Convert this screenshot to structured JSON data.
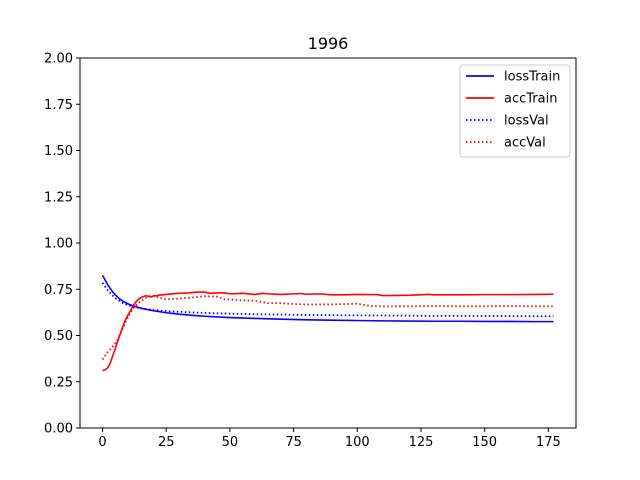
{
  "chart_data": {
    "type": "line",
    "title": "1996",
    "xlabel": "",
    "ylabel": "",
    "xlim": [
      -8.85,
      185.85
    ],
    "ylim": [
      0,
      2.0
    ],
    "xticks": [
      0,
      25,
      50,
      75,
      100,
      125,
      150,
      175
    ],
    "yticks": [
      0.0,
      0.25,
      0.5,
      0.75,
      1.0,
      1.25,
      1.5,
      1.75,
      2.0
    ],
    "xtick_labels": [
      "0",
      "25",
      "50",
      "75",
      "100",
      "125",
      "150",
      "175"
    ],
    "ytick_labels": [
      "0.00",
      "0.25",
      "0.50",
      "0.75",
      "1.00",
      "1.25",
      "1.50",
      "1.75",
      "2.00"
    ],
    "grid": false,
    "legend_position": "top-right",
    "series": [
      {
        "name": "lossTrain",
        "color": "#0000ff",
        "style": "solid",
        "x": [
          0,
          1,
          2,
          3,
          4,
          5,
          6,
          7,
          8,
          10,
          12,
          14,
          16,
          18,
          20,
          25,
          30,
          35,
          40,
          50,
          60,
          70,
          80,
          90,
          100,
          110,
          120,
          130,
          140,
          150,
          160,
          170,
          177
        ],
        "y": [
          0.825,
          0.8,
          0.775,
          0.755,
          0.735,
          0.72,
          0.707,
          0.695,
          0.685,
          0.671,
          0.66,
          0.652,
          0.645,
          0.639,
          0.634,
          0.623,
          0.615,
          0.609,
          0.604,
          0.597,
          0.592,
          0.588,
          0.585,
          0.583,
          0.581,
          0.579,
          0.578,
          0.577,
          0.577,
          0.576,
          0.576,
          0.575,
          0.575
        ]
      },
      {
        "name": "accTrain",
        "color": "#ff0000",
        "style": "solid",
        "x": [
          0,
          1,
          2,
          3,
          4,
          5,
          6,
          7,
          8,
          9,
          10,
          11,
          12,
          13,
          14,
          15,
          16,
          17,
          18,
          19,
          20,
          21,
          22,
          25,
          28,
          31,
          34,
          37,
          40,
          42,
          45,
          48,
          50,
          55,
          60,
          63,
          65,
          70,
          75,
          78,
          80,
          85,
          90,
          95,
          100,
          105,
          108,
          110,
          120,
          128,
          130,
          140,
          150,
          160,
          170,
          177
        ],
        "y": [
          0.31,
          0.315,
          0.325,
          0.35,
          0.39,
          0.43,
          0.47,
          0.51,
          0.55,
          0.585,
          0.61,
          0.635,
          0.66,
          0.68,
          0.695,
          0.705,
          0.71,
          0.715,
          0.712,
          0.708,
          0.713,
          0.715,
          0.718,
          0.722,
          0.726,
          0.729,
          0.73,
          0.735,
          0.735,
          0.728,
          0.73,
          0.73,
          0.725,
          0.728,
          0.722,
          0.728,
          0.725,
          0.722,
          0.725,
          0.727,
          0.723,
          0.725,
          0.72,
          0.72,
          0.722,
          0.721,
          0.721,
          0.716,
          0.717,
          0.722,
          0.72,
          0.72,
          0.721,
          0.721,
          0.722,
          0.723
        ]
      },
      {
        "name": "lossVal",
        "color": "#0000ff",
        "style": "dotted",
        "x": [
          0,
          1,
          2,
          3,
          4,
          5,
          6,
          7,
          8,
          10,
          12,
          14,
          16,
          18,
          20,
          25,
          30,
          35,
          40,
          50,
          60,
          70,
          80,
          90,
          100,
          110,
          120,
          130,
          140,
          150,
          160,
          170,
          177
        ],
        "y": [
          0.785,
          0.765,
          0.745,
          0.73,
          0.715,
          0.702,
          0.692,
          0.683,
          0.675,
          0.664,
          0.656,
          0.65,
          0.645,
          0.641,
          0.638,
          0.632,
          0.628,
          0.625,
          0.622,
          0.618,
          0.615,
          0.613,
          0.611,
          0.61,
          0.609,
          0.608,
          0.607,
          0.606,
          0.606,
          0.605,
          0.605,
          0.604,
          0.604
        ]
      },
      {
        "name": "accVal",
        "color": "#ff0000",
        "style": "dotted",
        "x": [
          0,
          1,
          2,
          4,
          6,
          8,
          10,
          12,
          14,
          16,
          18,
          20,
          22,
          25,
          30,
          35,
          40,
          45,
          48,
          50,
          55,
          60,
          65,
          70,
          75,
          80,
          85,
          90,
          95,
          100,
          105,
          110,
          120,
          130,
          140,
          150,
          160,
          170,
          177
        ],
        "y": [
          0.37,
          0.39,
          0.41,
          0.44,
          0.48,
          0.54,
          0.6,
          0.645,
          0.675,
          0.695,
          0.712,
          0.715,
          0.705,
          0.695,
          0.7,
          0.705,
          0.712,
          0.71,
          0.695,
          0.695,
          0.69,
          0.688,
          0.675,
          0.675,
          0.67,
          0.668,
          0.668,
          0.668,
          0.67,
          0.672,
          0.66,
          0.657,
          0.658,
          0.659,
          0.658,
          0.658,
          0.659,
          0.658,
          0.658
        ]
      }
    ]
  }
}
